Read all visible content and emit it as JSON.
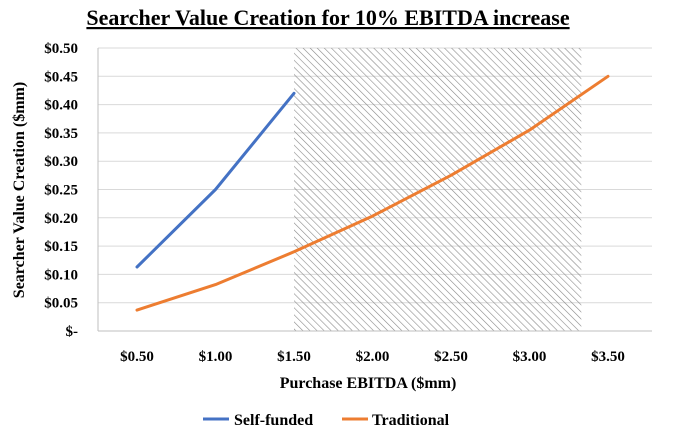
{
  "chart_data": {
    "type": "line",
    "title": "Searcher Value Creation for 10% EBITDA increase",
    "xlabel": "Purchase EBITDA ($mm)",
    "ylabel": "Searcher Value Creation ($mm)",
    "x_ticks": [
      {
        "value": 0.5,
        "label": "$0.50"
      },
      {
        "value": 1.0,
        "label": "$1.00"
      },
      {
        "value": 1.5,
        "label": "$1.50"
      },
      {
        "value": 2.0,
        "label": "$2.00"
      },
      {
        "value": 2.5,
        "label": "$2.50"
      },
      {
        "value": 3.0,
        "label": "$3.00"
      },
      {
        "value": 3.5,
        "label": "$3.50"
      }
    ],
    "xlim": [
      0.5,
      3.5
    ],
    "ylim": [
      0,
      0.5
    ],
    "y_ticks": [
      {
        "value": 0.0,
        "label": "$-"
      },
      {
        "value": 0.05,
        "label": "$0.05"
      },
      {
        "value": 0.1,
        "label": "$0.10"
      },
      {
        "value": 0.15,
        "label": "$0.15"
      },
      {
        "value": 0.2,
        "label": "$0.20"
      },
      {
        "value": 0.25,
        "label": "$0.25"
      },
      {
        "value": 0.3,
        "label": "$0.30"
      },
      {
        "value": 0.35,
        "label": "$0.35"
      },
      {
        "value": 0.4,
        "label": "$0.40"
      },
      {
        "value": 0.45,
        "label": "$0.45"
      },
      {
        "value": 0.5,
        "label": "$0.50"
      }
    ],
    "grid": true,
    "legend_position": "bottom",
    "shaded_region": {
      "x_start": 1.5,
      "x_end": 3.33,
      "pattern": "diagonal-hatch"
    },
    "series": [
      {
        "name": "Self-funded",
        "color": "#4472C4",
        "points": [
          [
            0.5,
            0.113
          ],
          [
            1.0,
            0.25
          ],
          [
            1.5,
            0.42
          ]
        ]
      },
      {
        "name": "Traditional",
        "color": "#ED7D31",
        "points": [
          [
            0.5,
            0.037
          ],
          [
            1.0,
            0.082
          ],
          [
            1.5,
            0.14
          ],
          [
            2.0,
            0.203
          ],
          [
            2.5,
            0.275
          ],
          [
            3.0,
            0.355
          ],
          [
            3.5,
            0.45
          ]
        ]
      }
    ]
  }
}
